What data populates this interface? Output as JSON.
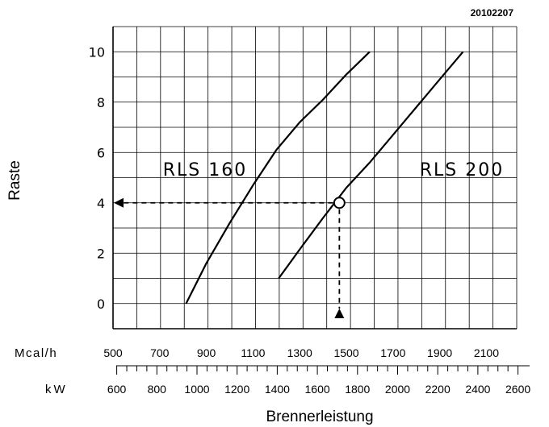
{
  "chart_data": {
    "type": "line",
    "code": "20102207",
    "ylabel": "Raste",
    "xlabel": "Brennerleistung",
    "y_ticks": [
      "0",
      "2",
      "4",
      "6",
      "8",
      "10"
    ],
    "ylim": [
      -1,
      11
    ],
    "grid": true,
    "axis_mcal": {
      "unit": "Mcal/h",
      "range": [
        500,
        2230
      ],
      "ticks": [
        "500",
        "700",
        "900",
        "1100",
        "1300",
        "1500",
        "1700",
        "1900",
        "2100"
      ]
    },
    "axis_kw": {
      "unit": "kW",
      "range": [
        581.5,
        2593.6
      ],
      "ticks": [
        "600",
        "800",
        "1000",
        "1200",
        "1400",
        "1600",
        "1800",
        "2000",
        "2200",
        "2400",
        "2600"
      ]
    },
    "series": [
      {
        "name": "RLS 160",
        "label": "RLS 160",
        "x_mcal": [
          813,
          900,
          1000,
          1100,
          1200,
          1300,
          1400,
          1500,
          1600
        ],
        "y": [
          0,
          1.6,
          3.2,
          4.7,
          6.1,
          7.2,
          8.1,
          9.1,
          10
        ]
      },
      {
        "name": "RLS 200",
        "label": "RLS 200",
        "x_mcal": [
          1210,
          1300,
          1400,
          1500,
          1600,
          1700,
          1800,
          1900,
          2000
        ],
        "y": [
          1,
          2.15,
          3.4,
          4.6,
          5.6,
          6.7,
          7.8,
          8.9,
          10
        ]
      }
    ],
    "example": {
      "x_mcal": 1470,
      "y": 4
    }
  }
}
